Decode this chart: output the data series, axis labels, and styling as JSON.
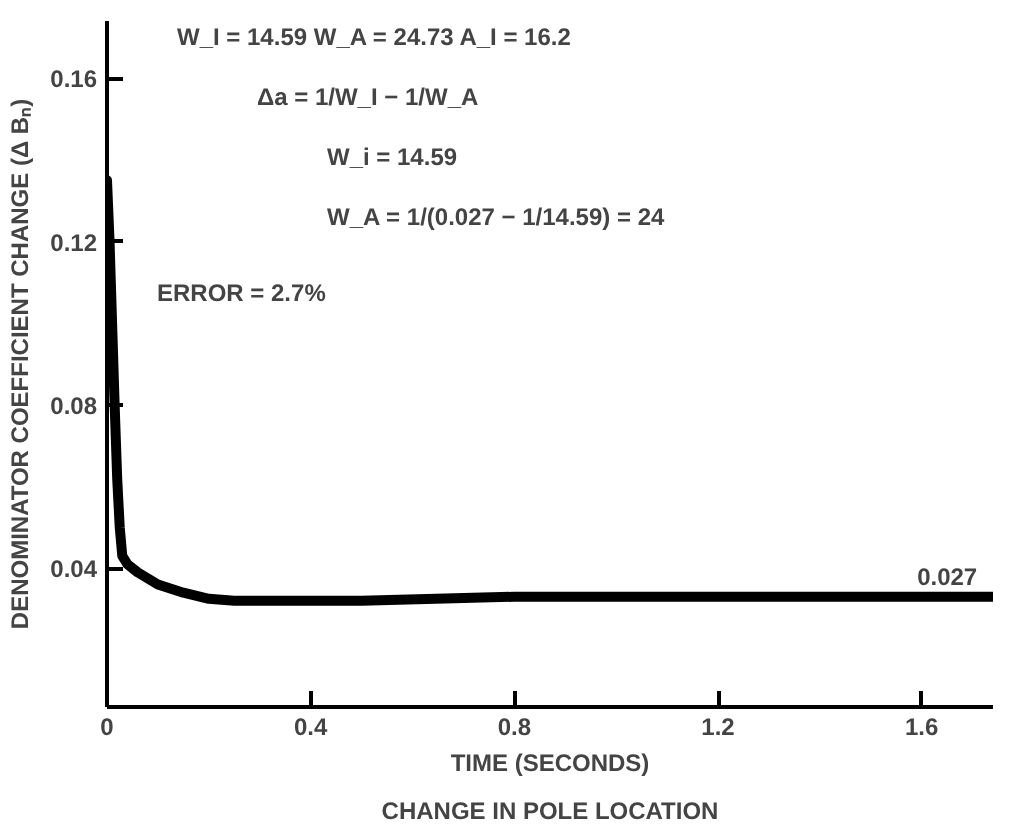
{
  "chart_data": {
    "type": "line",
    "title": "CHANGE IN POLE LOCATION",
    "xlabel": "TIME (SECONDS)",
    "ylabel": "DENOMINATOR COEFFICIENT CHANGE (Δ Bₙ)",
    "x": [
      0,
      0.005,
      0.01,
      0.015,
      0.02,
      0.025,
      0.03,
      0.04,
      0.06,
      0.1,
      0.15,
      0.2,
      0.25,
      0.3,
      0.5,
      0.8,
      1.2,
      1.6,
      1.74
    ],
    "series": [
      {
        "color": "#000000",
        "values": [
          0.135,
          0.12,
          0.1,
          0.08,
          0.062,
          0.05,
          0.043,
          0.041,
          0.039,
          0.036,
          0.034,
          0.0325,
          0.032,
          0.032,
          0.032,
          0.033,
          0.033,
          0.033,
          0.033
        ]
      }
    ],
    "xlim": [
      0,
      1.74
    ],
    "ylim": [
      0.006,
      0.174
    ],
    "xticks": [
      0,
      0.4,
      0.8,
      1.2,
      1.6
    ],
    "yticks": [
      0.04,
      0.08,
      0.12,
      0.16
    ],
    "grid": false,
    "marker": "none",
    "line_style": "solid",
    "annotations": [
      "W_I = 14.59    W_A = 24.73    A_I = 16.2",
      "Δa = 1/W_I − 1/W_A",
      "W_i = 14.59",
      "W_A = 1/(0.027 − 1/14.59) = 24",
      "ERROR = 2.7%",
      {
        "text": "0.027",
        "x": 1.65,
        "y": 0.033
      }
    ]
  }
}
